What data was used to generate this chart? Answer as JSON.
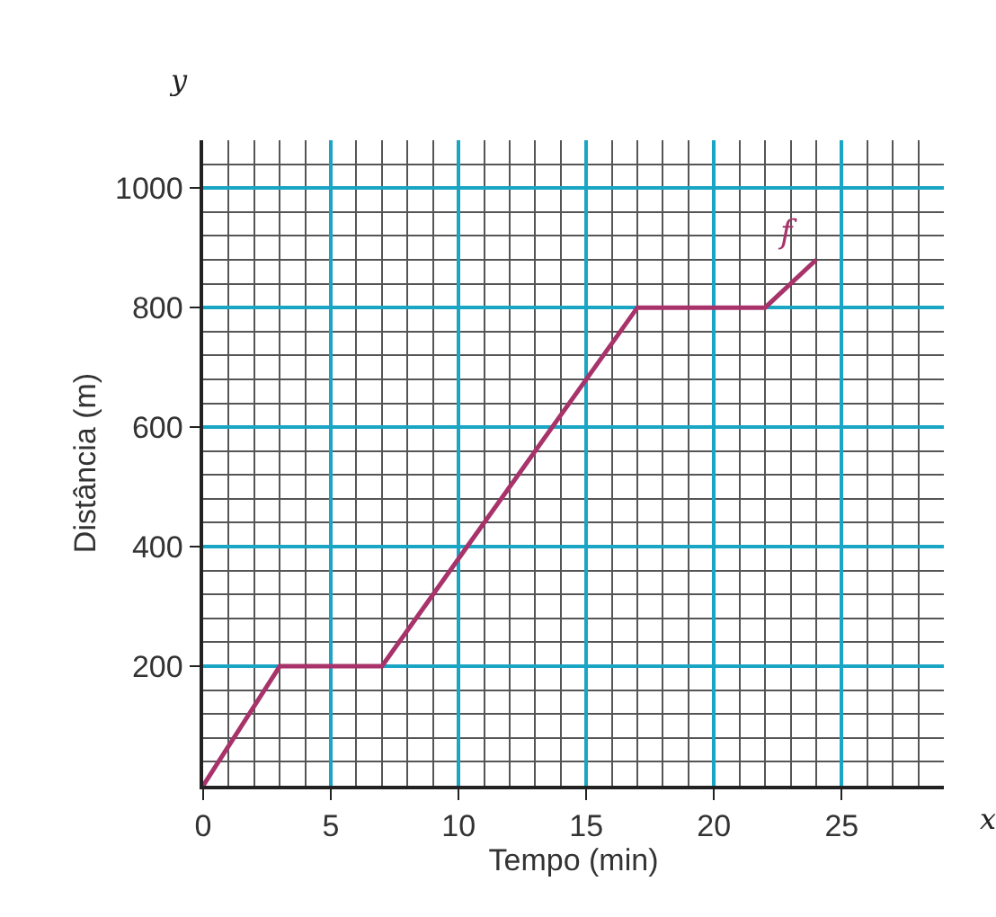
{
  "chart_data": {
    "type": "line",
    "xlabel": "Tempo (min)",
    "ylabel": "Distância (m)",
    "x": [
      0,
      3,
      7,
      17,
      22,
      24
    ],
    "series": [
      {
        "name": "f",
        "color": "#a8336b",
        "values": [
          0,
          200,
          200,
          800,
          800,
          880
        ]
      }
    ],
    "xlim": [
      0,
      29
    ],
    "ylim": [
      0,
      1080
    ],
    "xticks": [
      0,
      5,
      10,
      15,
      20,
      25
    ],
    "yticks": [
      200,
      400,
      600,
      800,
      1000
    ],
    "grid": true,
    "marker": "none",
    "line_style": "solid",
    "annotations": [
      "x",
      "y"
    ]
  }
}
